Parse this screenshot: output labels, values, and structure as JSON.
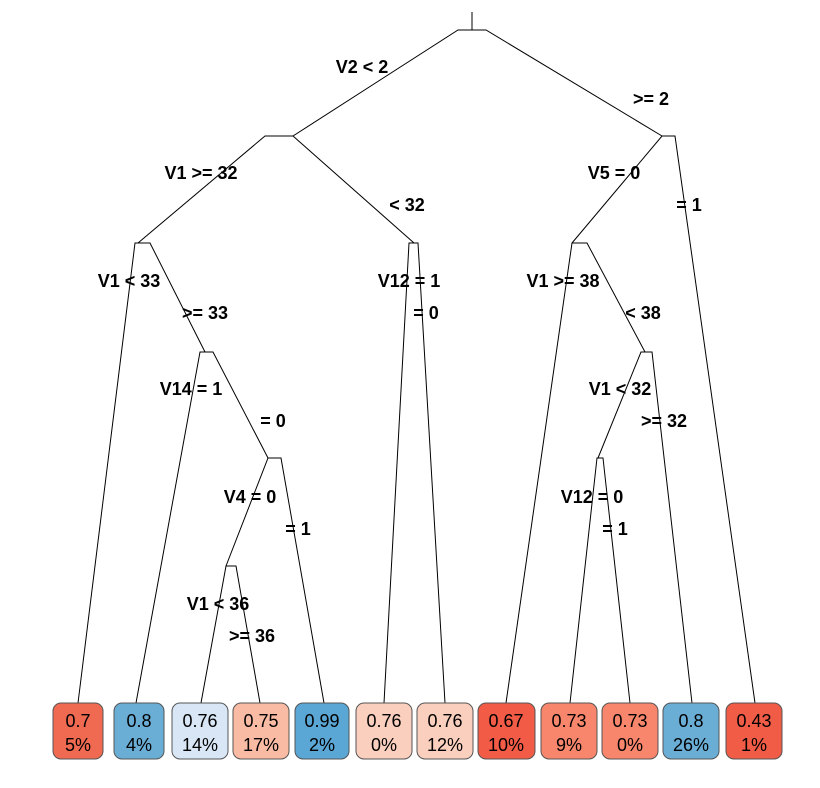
{
  "tree": {
    "splits": [
      {
        "id": "root",
        "left_label": "V2 < 2",
        "right_label": ">= 2"
      },
      {
        "id": "n2",
        "left_label": "V1 >= 32",
        "right_label": "< 32"
      },
      {
        "id": "n3",
        "left_label": "V5 = 0",
        "right_label": "= 1"
      },
      {
        "id": "n4",
        "left_label": "V1 < 33",
        "right_label": ">= 33"
      },
      {
        "id": "n5",
        "left_label": "V12 = 1",
        "right_label": "= 0"
      },
      {
        "id": "n6",
        "left_label": "V1 >= 38",
        "right_label": "< 38"
      },
      {
        "id": "n9",
        "left_label": "V14 = 1",
        "right_label": "= 0"
      },
      {
        "id": "n13",
        "left_label": "V1 < 32",
        "right_label": ">= 32"
      },
      {
        "id": "n19",
        "left_label": "V4 = 0",
        "right_label": "= 1"
      },
      {
        "id": "n26",
        "left_label": "V12 = 0",
        "right_label": "= 1"
      },
      {
        "id": "n38",
        "left_label": "V1 < 36",
        "right_label": ">= 36"
      }
    ],
    "leaves": [
      {
        "value": "0.7",
        "percent": "5%",
        "color": "#f06a52"
      },
      {
        "value": "0.8",
        "percent": "4%",
        "color": "#6aaed6"
      },
      {
        "value": "0.76",
        "percent": "14%",
        "color": "#d8e6f5"
      },
      {
        "value": "0.75",
        "percent": "17%",
        "color": "#f9bba4"
      },
      {
        "value": "0.99",
        "percent": "2%",
        "color": "#5aa6d5"
      },
      {
        "value": "0.76",
        "percent": "0%",
        "color": "#fbcfbd"
      },
      {
        "value": "0.76",
        "percent": "12%",
        "color": "#fbcfbd"
      },
      {
        "value": "0.67",
        "percent": "10%",
        "color": "#f25c47"
      },
      {
        "value": "0.73",
        "percent": "9%",
        "color": "#f7866c"
      },
      {
        "value": "0.73",
        "percent": "0%",
        "color": "#f7866c"
      },
      {
        "value": "0.8",
        "percent": "26%",
        "color": "#6aaed6"
      },
      {
        "value": "0.43",
        "percent": "1%",
        "color": "#f05c45"
      }
    ]
  }
}
